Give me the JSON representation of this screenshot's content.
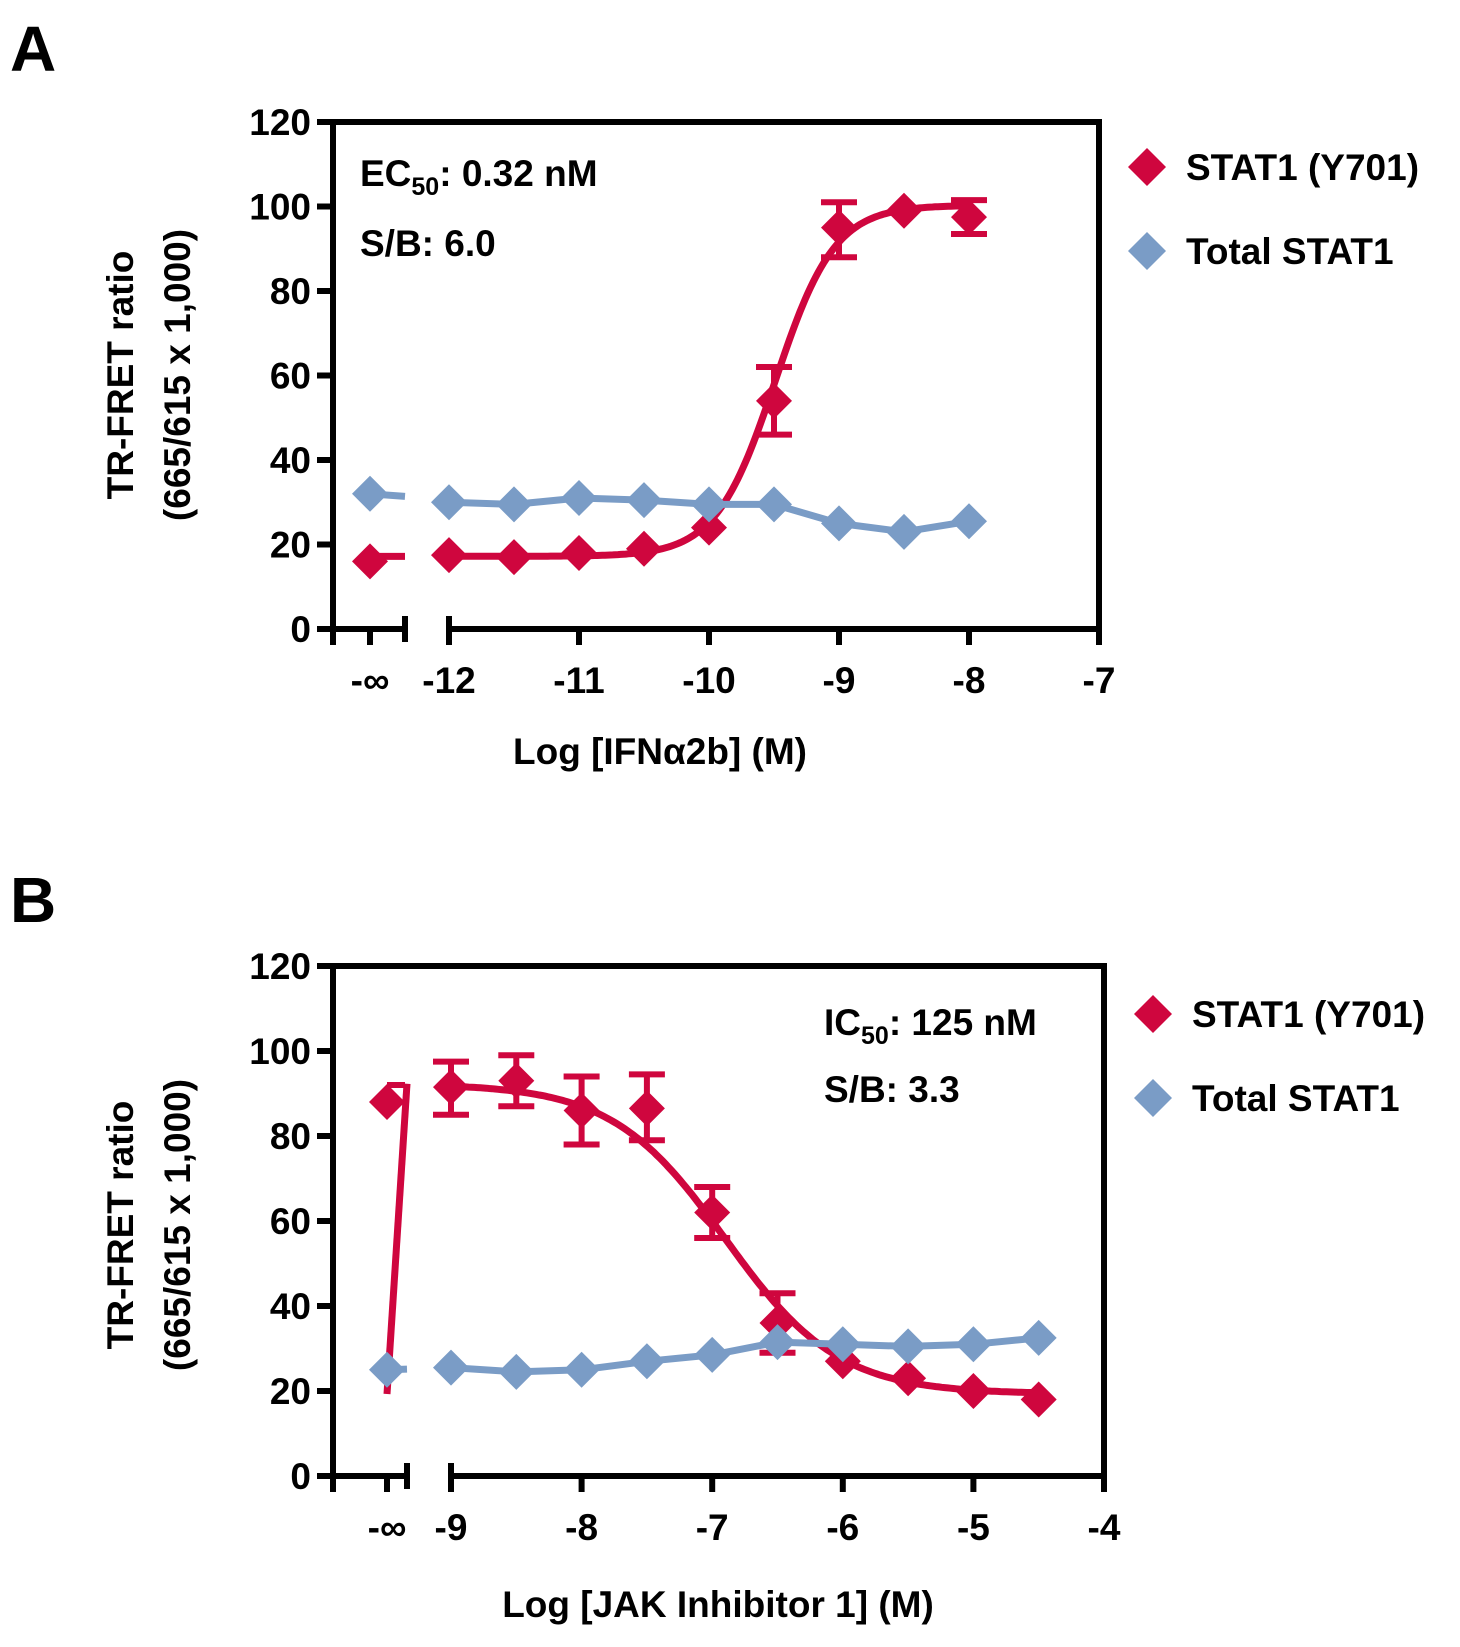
{
  "colors": {
    "phospho": "#cf063e",
    "total": "#7a9cc6",
    "axis": "#000000"
  },
  "chart_data": [
    {
      "panel_label": "A",
      "type": "line",
      "title": "",
      "xlabel": "Log [IFNα2b] (M)",
      "ylabel_line1": "TR-FRET ratio",
      "ylabel_line2": "(665/615 x 1,000)",
      "ylim": [
        0,
        120
      ],
      "yticks": [
        0,
        20,
        40,
        60,
        80,
        100,
        120
      ],
      "xlim": [
        -12,
        -7
      ],
      "xticks": [
        -12,
        -11,
        -10,
        -9,
        -8,
        -7
      ],
      "xtick_labels": [
        "-12",
        "-11",
        "-10",
        "-9",
        "-8",
        "-7"
      ],
      "neg_inf_label": "-∞",
      "annotations": [
        {
          "prefix": "EC",
          "sub": "50",
          "suffix": ": 0.32 nM"
        },
        {
          "prefix": "S/B: 6.0",
          "sub": "",
          "suffix": ""
        }
      ],
      "annotation_position": "top-left",
      "legend_position": "right",
      "series": [
        {
          "name": "STAT1 (Y701)",
          "color_key": "phospho",
          "fit": "sigmoid-increasing",
          "baseline_neg_inf": 16,
          "x": [
            -12,
            -11.5,
            -11,
            -10.5,
            -10,
            -9.5,
            -9,
            -8.5,
            -8
          ],
          "values": [
            17.5,
            17,
            18,
            19,
            24,
            54,
            95,
            99,
            97.5
          ],
          "err_low": [
            null,
            null,
            null,
            null,
            null,
            46,
            88,
            null,
            93.5
          ],
          "err_high": [
            null,
            null,
            null,
            null,
            null,
            62,
            101,
            null,
            101.5
          ],
          "fit_params": {
            "bottom": 17.2,
            "top": 100.3,
            "logEC50": -9.49,
            "hill": 1.9
          }
        },
        {
          "name": "Total STAT1",
          "color_key": "total",
          "fit": "connect",
          "baseline_neg_inf": 32,
          "x": [
            -12,
            -11.5,
            -11,
            -10.5,
            -10,
            -9.5,
            -9,
            -8.5,
            -8
          ],
          "values": [
            30,
            29.5,
            31,
            30.5,
            29.5,
            29.5,
            25,
            23,
            25.5
          ],
          "err_low": [],
          "err_high": []
        }
      ]
    },
    {
      "panel_label": "B",
      "type": "line",
      "title": "",
      "xlabel": "Log [JAK Inhibitor 1] (M)",
      "ylabel_line1": "TR-FRET ratio",
      "ylabel_line2": "(665/615 x 1,000)",
      "ylim": [
        0,
        120
      ],
      "yticks": [
        0,
        20,
        40,
        60,
        80,
        100,
        120
      ],
      "xlim": [
        -9,
        -4
      ],
      "xticks": [
        -9,
        -8,
        -7,
        -6,
        -5,
        -4
      ],
      "xtick_labels": [
        "-9",
        "-8",
        "-7",
        "-6",
        "-5",
        "-4"
      ],
      "neg_inf_label": "-∞",
      "annotations": [
        {
          "prefix": "IC",
          "sub": "50",
          "suffix": ": 125 nM"
        },
        {
          "prefix": "S/B: 3.3",
          "sub": "",
          "suffix": ""
        }
      ],
      "annotation_position": "top-right",
      "legend_position": "right",
      "series": [
        {
          "name": "STAT1 (Y701)",
          "color_key": "phospho",
          "fit": "sigmoid-decreasing",
          "baseline_neg_inf": 88,
          "baseline_neg_inf_err_high": 92,
          "x": [
            -9,
            -8.5,
            -8,
            -7.5,
            -7,
            -6.5,
            -6,
            -5.5,
            -5,
            -4.5
          ],
          "values": [
            91.5,
            93,
            86,
            86.5,
            62,
            36,
            27,
            23,
            20,
            18
          ],
          "err_low": [
            85,
            87,
            78,
            79,
            56,
            29,
            null,
            null,
            null,
            null
          ],
          "err_high": [
            97.5,
            99,
            94,
            94.5,
            68,
            43,
            null,
            null,
            null,
            null
          ],
          "fit_params": {
            "bottom": 19.3,
            "top": 92.3,
            "logEC50": -6.9,
            "hill": -1.0
          }
        },
        {
          "name": "Total STAT1",
          "color_key": "total",
          "fit": "connect",
          "baseline_neg_inf": 25,
          "x": [
            -9,
            -8.5,
            -8,
            -7.5,
            -7,
            -6.5,
            -6,
            -5.5,
            -5,
            -4.5
          ],
          "values": [
            25.5,
            24.5,
            25,
            27,
            28.5,
            31.5,
            31,
            30.5,
            31,
            32.5
          ],
          "err_low": [],
          "err_high": []
        }
      ]
    }
  ]
}
